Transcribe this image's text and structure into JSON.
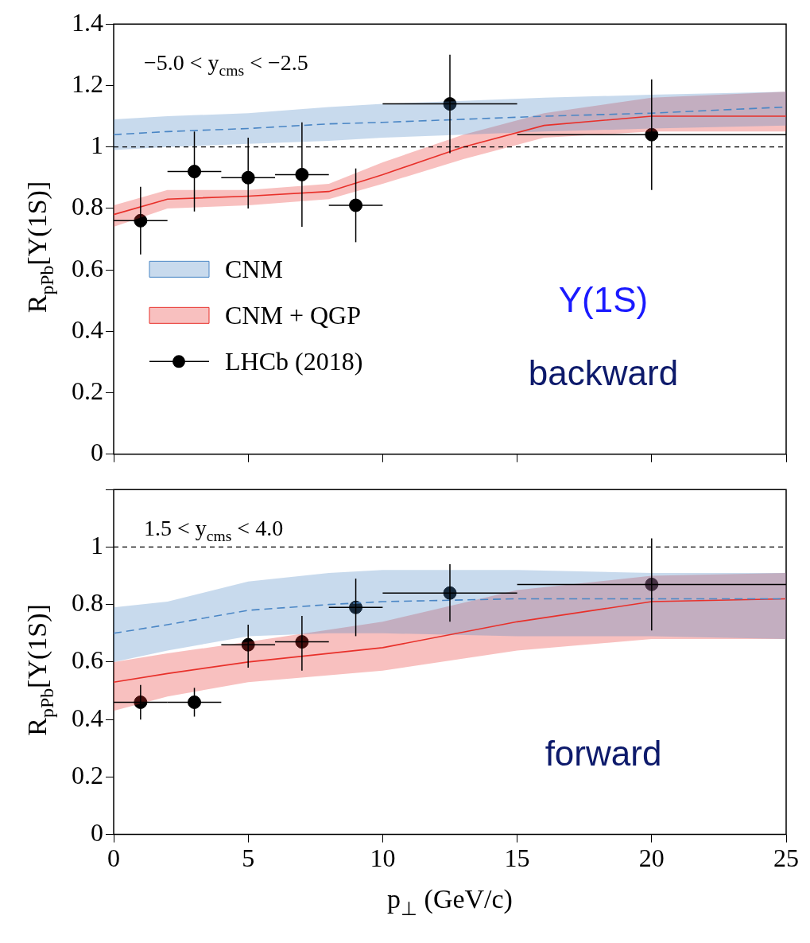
{
  "chart_data": [
    {
      "type": "line",
      "ylabel": "R$_{pPb}$[Υ(1S)]",
      "xlim": [
        0,
        25
      ],
      "xticks": [
        0,
        5,
        10,
        15,
        20,
        25
      ],
      "ylim": [
        0,
        1.4
      ],
      "yticks": [
        0,
        0.2,
        0.4,
        0.6,
        0.8,
        1,
        1.2,
        1.4
      ],
      "tick_labels": "y",
      "grid": false,
      "legend": "left",
      "annotations": [
        "−5.0 < y$_{cms}$ < −2.5",
        "Υ(1S)",
        "backward"
      ],
      "ref_lines": [
        {
          "axis": "y",
          "value": 1,
          "line_style": "dashed",
          "color": "#000000"
        }
      ],
      "series": [
        {
          "name": "CNM",
          "color": "#4a86c5",
          "line_style": "dashed",
          "x": [
            0,
            2,
            5,
            8,
            10,
            13,
            16,
            20,
            25
          ],
          "values": [
            1.04,
            1.05,
            1.06,
            1.075,
            1.08,
            1.09,
            1.1,
            1.11,
            1.13
          ],
          "lower": [
            0.99,
            1.0,
            1.01,
            1.02,
            1.03,
            1.04,
            1.05,
            1.06,
            1.07
          ],
          "upper": [
            1.09,
            1.1,
            1.11,
            1.13,
            1.14,
            1.15,
            1.16,
            1.17,
            1.18
          ]
        },
        {
          "name": "CNM + QGP",
          "color": "#e8302a",
          "line_style": "solid",
          "x": [
            0,
            2,
            5,
            8,
            10,
            13,
            16,
            20,
            25
          ],
          "values": [
            0.78,
            0.83,
            0.84,
            0.855,
            0.91,
            1.0,
            1.07,
            1.1,
            1.1
          ],
          "lower": [
            0.74,
            0.8,
            0.81,
            0.83,
            0.88,
            0.96,
            1.03,
            1.05,
            1.05
          ],
          "upper": [
            0.81,
            0.86,
            0.86,
            0.88,
            0.95,
            1.04,
            1.11,
            1.16,
            1.18
          ]
        },
        {
          "name": "LHCb (2018)",
          "type": "scatter",
          "color": "#000000",
          "marker": "circle",
          "x": [
            1,
            3,
            5,
            7,
            9,
            12.5,
            20
          ],
          "values": [
            0.76,
            0.92,
            0.9,
            0.91,
            0.81,
            1.14,
            1.04
          ],
          "errors": [
            [
              0.65,
              0.87
            ],
            [
              0.79,
              1.05
            ],
            [
              0.8,
              1.03
            ],
            [
              0.74,
              1.08
            ],
            [
              0.69,
              0.93
            ],
            [
              0.98,
              1.3
            ],
            [
              0.86,
              1.22
            ]
          ],
          "xerrors": [
            1,
            1,
            1,
            1,
            1,
            2.5,
            5
          ]
        }
      ]
    },
    {
      "type": "line",
      "ylabel": "R$_{pPb}$[Υ(1S)]",
      "xlabel": "p$_{⊥}$ (GeV/c)",
      "xlim": [
        0,
        25
      ],
      "xticks": [
        0,
        5,
        10,
        15,
        20,
        25
      ],
      "ylim": [
        0,
        1.2
      ],
      "yticks": [
        0,
        0.2,
        0.4,
        0.6,
        0.8,
        1,
        {
          "value": 1.2,
          "label": null
        }
      ],
      "grid": false,
      "legend": false,
      "annotations": [
        "1.5 < y$_{cms}$ < 4.0",
        "forward"
      ],
      "ref_lines": [
        {
          "axis": "y",
          "value": 1,
          "line_style": "dashed",
          "color": "#000000"
        }
      ],
      "series": [
        {
          "color": "#4a86c5",
          "line_style": "dashed",
          "x": [
            0,
            2,
            5,
            8,
            10,
            15,
            20,
            25
          ],
          "values": [
            0.7,
            0.73,
            0.78,
            0.8,
            0.81,
            0.82,
            0.82,
            0.82
          ],
          "lower": [
            0.6,
            0.64,
            0.69,
            0.7,
            0.7,
            0.69,
            0.69,
            0.68
          ],
          "upper": [
            0.79,
            0.81,
            0.88,
            0.91,
            0.92,
            0.92,
            0.91,
            0.91
          ]
        },
        {
          "color": "#e8302a",
          "line_style": "solid",
          "x": [
            0,
            2,
            5,
            10,
            15,
            20,
            25
          ],
          "values": [
            0.53,
            0.56,
            0.6,
            0.65,
            0.74,
            0.81,
            0.82
          ],
          "lower": [
            0.43,
            0.48,
            0.53,
            0.57,
            0.64,
            0.68,
            0.68
          ],
          "upper": [
            0.6,
            0.63,
            0.67,
            0.74,
            0.85,
            0.9,
            0.91
          ]
        },
        {
          "type": "scatter",
          "color": "#000000",
          "marker": "circle",
          "x": [
            1,
            3,
            5,
            7,
            9,
            12.5,
            20
          ],
          "values": [
            0.46,
            0.46,
            0.66,
            0.67,
            0.79,
            0.84,
            0.87
          ],
          "errors": [
            [
              0.4,
              0.52
            ],
            [
              0.41,
              0.51
            ],
            [
              0.58,
              0.73
            ],
            [
              0.57,
              0.76
            ],
            [
              0.69,
              0.89
            ],
            [
              0.74,
              0.94
            ],
            [
              0.71,
              1.03
            ]
          ],
          "xerrors": [
            1,
            1,
            1,
            1,
            1,
            2.5,
            5
          ]
        }
      ]
    }
  ]
}
